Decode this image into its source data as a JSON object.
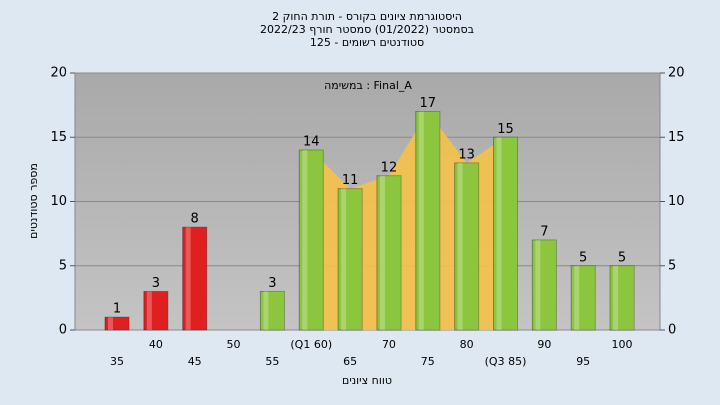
{
  "chart_data": {
    "type": "bar",
    "title": [
      "היסטוגרמת ציונים בקורס - תורת החוק 2",
      "בסמסטר (01/2022) סמסטר חורף 2022/23",
      "סטודנטים רשומים - 125"
    ],
    "annotation": "במשימה : Final_A",
    "xlabel": "טווח ציונים",
    "ylabel": "מספר סטודנטים",
    "categories": [
      "35",
      "40",
      "45",
      "50",
      "55",
      "(Q1 60)",
      "65",
      "70",
      "75",
      "80",
      "(Q3 85)",
      "90",
      "95",
      "100"
    ],
    "values": [
      1,
      3,
      8,
      null,
      3,
      14,
      11,
      12,
      17,
      13,
      15,
      7,
      5,
      5
    ],
    "colors": [
      "#e02020",
      "#e02020",
      "#e02020",
      "#e02020",
      "#8cc63e",
      "#8cc63e",
      "#8cc63e",
      "#8cc63e",
      "#8cc63e",
      "#8cc63e",
      "#8cc63e",
      "#8cc63e",
      "#8cc63e",
      "#8cc63e"
    ],
    "ylim": [
      0,
      20
    ],
    "yticks": [
      0,
      5,
      10,
      15,
      20
    ],
    "grid": true
  }
}
